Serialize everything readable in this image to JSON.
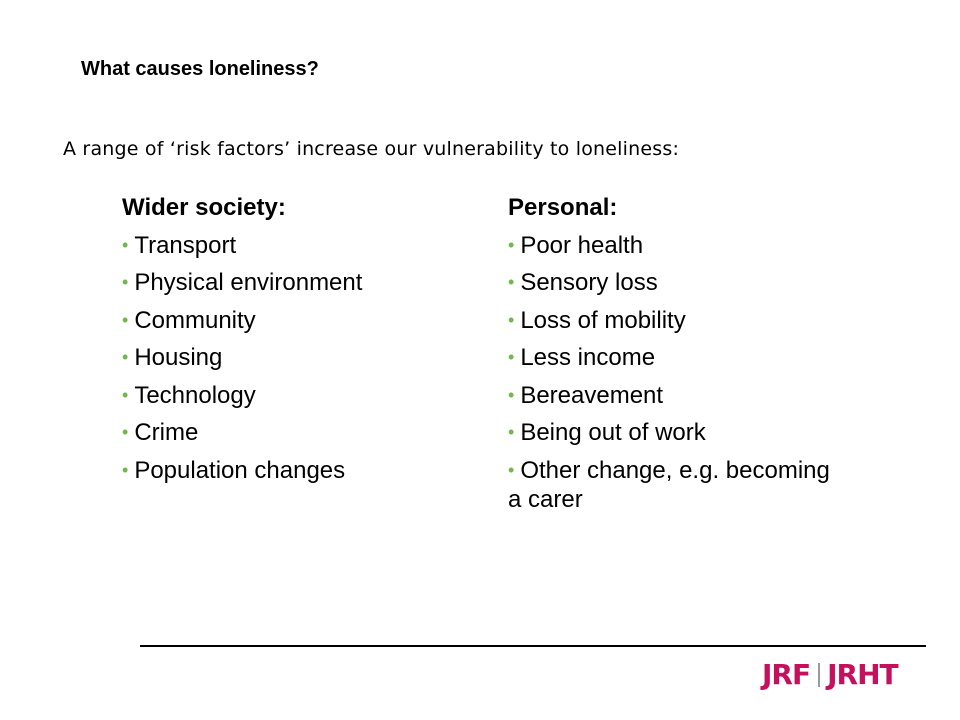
{
  "title": "What causes loneliness?",
  "intro": "A range of ‘risk factors’ increase our vulnerability to loneliness:",
  "bullet_color": "#71b84a",
  "bullet_char": "•",
  "wider_society": {
    "heading": "Wider society:",
    "items": [
      "Transport",
      "Physical environment",
      "Community",
      "Housing",
      "Technology",
      "Crime",
      "Population changes"
    ]
  },
  "personal": {
    "heading": "Personal:",
    "items": [
      "Poor health",
      "Sensory loss",
      "Loss of mobility",
      "Less income",
      "Bereavement",
      "Being out of work",
      "Other change, e.g. becoming a carer"
    ]
  },
  "logo": {
    "left": "JRF",
    "right": "JRHT",
    "color": "#c5105e"
  }
}
